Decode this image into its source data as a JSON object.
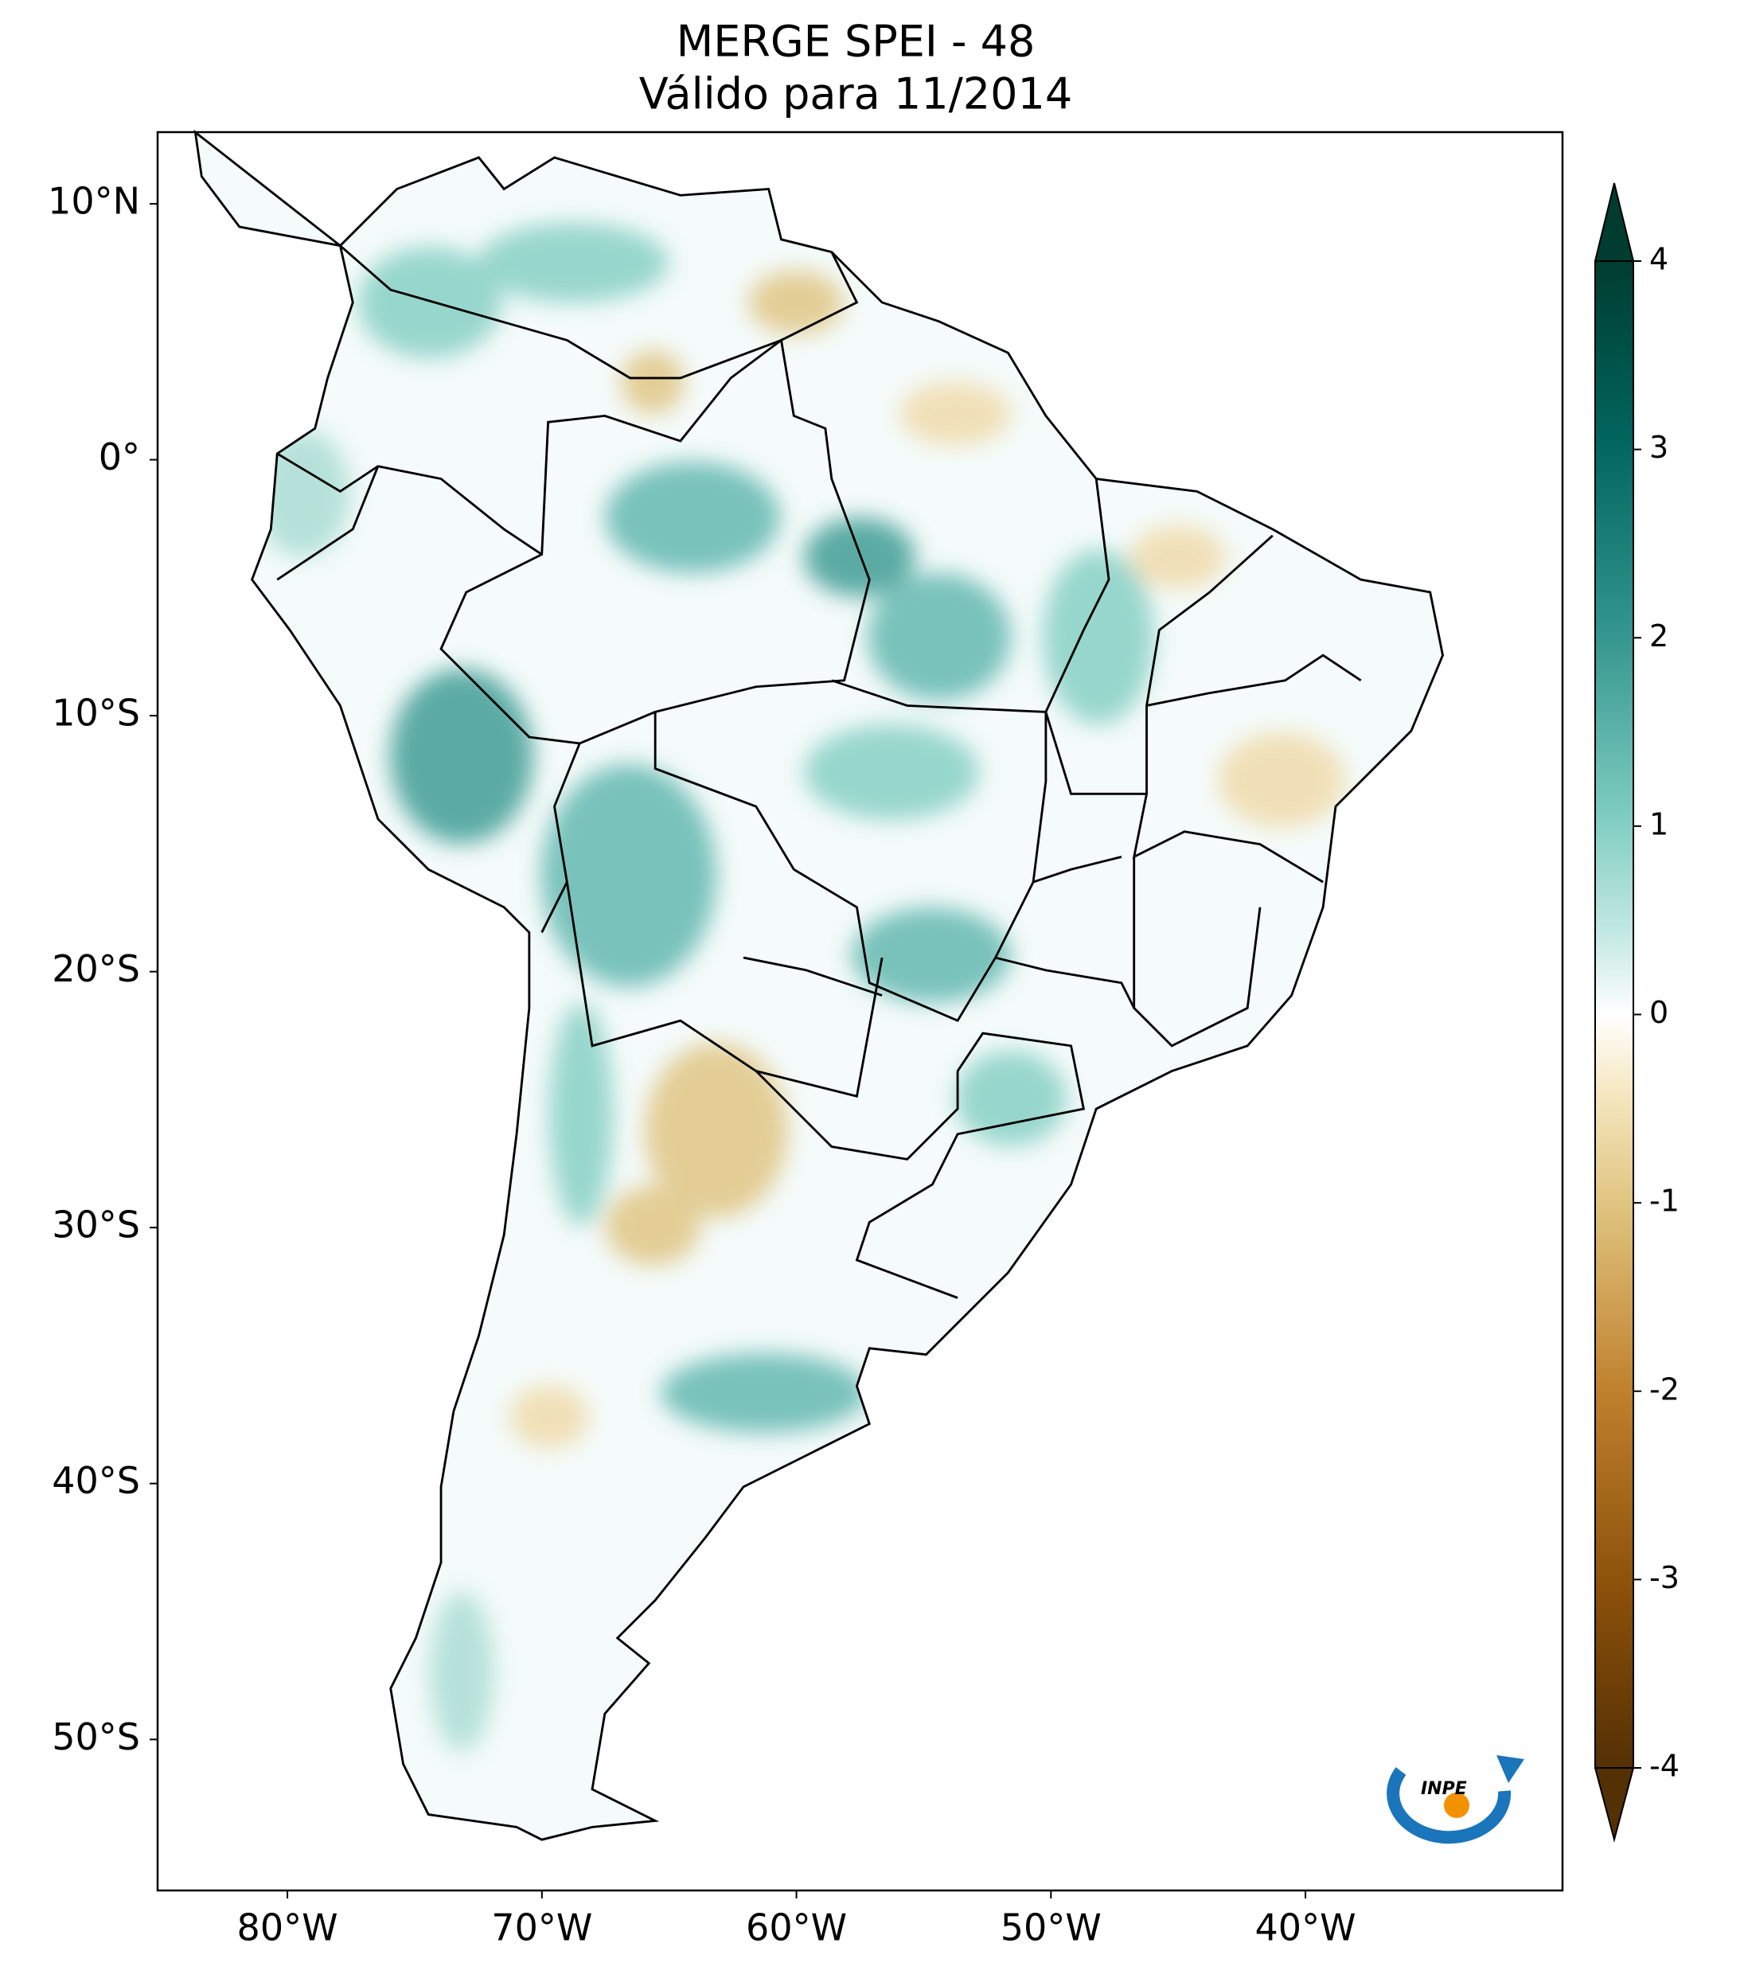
{
  "title": "MERGE   SPEI - 48",
  "subtitle": "Válido para 11/2014",
  "map": {
    "xlim": [
      -85.1,
      -29.9
    ],
    "ylim": [
      -55.9,
      12.8
    ],
    "xticks": [
      {
        "value": -80,
        "label": "80°W"
      },
      {
        "value": -70,
        "label": "70°W"
      },
      {
        "value": -60,
        "label": "60°W"
      },
      {
        "value": -50,
        "label": "50°W"
      },
      {
        "value": -40,
        "label": "40°W"
      }
    ],
    "yticks": [
      {
        "value": 10,
        "label": "10°N"
      },
      {
        "value": 0,
        "label": "0°"
      },
      {
        "value": -10,
        "label": "10°S"
      },
      {
        "value": -20,
        "label": "20°S"
      },
      {
        "value": -30,
        "label": "30°S"
      },
      {
        "value": -40,
        "label": "40°S"
      },
      {
        "value": -50,
        "label": "50°S"
      }
    ]
  },
  "colorbar": {
    "lim": [
      -4,
      4
    ],
    "ticks": [
      4,
      3,
      2,
      1,
      0,
      -1,
      -2,
      -3,
      -4
    ]
  },
  "logo": "INPE"
}
